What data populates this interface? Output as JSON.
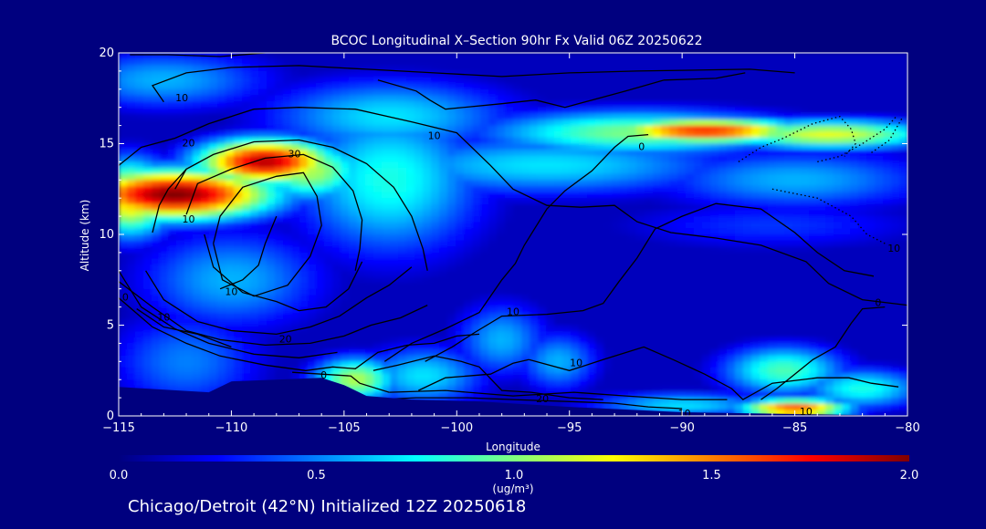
{
  "chart_data": {
    "type": "heatmap",
    "title": "BCOC Longitudinal X–Section 90hr  Fx Valid 06Z 20250622",
    "xlabel": "Longitude",
    "ylabel": "Altitude (km)",
    "xlim": [
      -115,
      -80
    ],
    "ylim": [
      0,
      20
    ],
    "x_ticks": [
      -115,
      -110,
      -105,
      -100,
      -95,
      -90,
      -85,
      -80
    ],
    "x_tick_labels": [
      "−115",
      "−110",
      "−105",
      "−100",
      "−95",
      "−90",
      "−85",
      "−80"
    ],
    "y_ticks": [
      0,
      5,
      10,
      15,
      20
    ],
    "y_tick_labels": [
      "0",
      "5",
      "10",
      "15",
      "20"
    ],
    "colorbar": {
      "min": 0.0,
      "max": 2.0,
      "ticks": [
        0.0,
        0.5,
        1.0,
        1.5,
        2.0
      ],
      "tick_labels": [
        "0.0",
        "0.5",
        "1.0",
        "1.5",
        "2.0"
      ],
      "units": "(ug/m³)",
      "colormap": [
        "#00007f",
        "#0000ff",
        "#007fff",
        "#00ffff",
        "#7fff7f",
        "#ffff00",
        "#ff7f00",
        "#ff0000",
        "#7f0000"
      ]
    },
    "concentration_blobs": [
      {
        "lon": -112.5,
        "alt": 12.2,
        "value": 2.0,
        "sx": 3.2,
        "sy": 1.0
      },
      {
        "lon": -108.5,
        "alt": 14.0,
        "value": 1.9,
        "sx": 2.2,
        "sy": 0.9
      },
      {
        "lon": -114.5,
        "alt": 12.0,
        "value": 1.4,
        "sx": 1.4,
        "sy": 1.5
      },
      {
        "lon": -106.5,
        "alt": 13.5,
        "value": 1.1,
        "sx": 1.8,
        "sy": 1.2
      },
      {
        "lon": -103.0,
        "alt": 13.0,
        "value": 0.8,
        "sx": 3.0,
        "sy": 3.0
      },
      {
        "lon": -103.0,
        "alt": 16.5,
        "value": 0.7,
        "sx": 4.0,
        "sy": 1.5
      },
      {
        "lon": -89.0,
        "alt": 15.7,
        "value": 1.7,
        "sx": 3.2,
        "sy": 0.5
      },
      {
        "lon": -83.5,
        "alt": 15.5,
        "value": 1.2,
        "sx": 3.5,
        "sy": 0.6
      },
      {
        "lon": -92.0,
        "alt": 15.6,
        "value": 1.0,
        "sx": 5.0,
        "sy": 0.9
      },
      {
        "lon": -96.0,
        "alt": 13.8,
        "value": 0.7,
        "sx": 6.0,
        "sy": 1.2
      },
      {
        "lon": -85.0,
        "alt": 13.0,
        "value": 0.6,
        "sx": 4.5,
        "sy": 1.2
      },
      {
        "lon": -113.0,
        "alt": 18.5,
        "value": 0.6,
        "sx": 3.5,
        "sy": 1.2
      },
      {
        "lon": -110.0,
        "alt": 7.5,
        "value": 0.6,
        "sx": 3.0,
        "sy": 2.0
      },
      {
        "lon": -104.5,
        "alt": 2.0,
        "value": 1.1,
        "sx": 1.4,
        "sy": 0.9
      },
      {
        "lon": -101.5,
        "alt": 2.2,
        "value": 0.7,
        "sx": 2.0,
        "sy": 1.2
      },
      {
        "lon": -98.0,
        "alt": 4.2,
        "value": 0.6,
        "sx": 1.5,
        "sy": 1.5
      },
      {
        "lon": -95.5,
        "alt": 3.0,
        "value": 0.6,
        "sx": 1.3,
        "sy": 1.2
      },
      {
        "lon": -85.5,
        "alt": 2.5,
        "value": 0.9,
        "sx": 2.0,
        "sy": 1.0
      },
      {
        "lon": -82.0,
        "alt": 1.5,
        "value": 0.8,
        "sx": 2.0,
        "sy": 0.8
      },
      {
        "lon": -85.0,
        "alt": 0.4,
        "value": 1.6,
        "sx": 1.8,
        "sy": 0.4
      },
      {
        "lon": -90.0,
        "alt": 0.6,
        "value": 0.7,
        "sx": 3.0,
        "sy": 0.5
      },
      {
        "lon": -112.0,
        "alt": 3.0,
        "value": 0.5,
        "sx": 2.5,
        "sy": 2.0
      },
      {
        "lon": -86.0,
        "alt": 10.5,
        "value": 0.35,
        "sx": 5.0,
        "sy": 1.0
      }
    ],
    "terrain": [
      [
        -115,
        1.6
      ],
      [
        -111,
        1.3
      ],
      [
        -110,
        1.9
      ],
      [
        -108,
        2.0
      ],
      [
        -106,
        2.1
      ],
      [
        -105,
        1.7
      ],
      [
        -104,
        1.1
      ],
      [
        -102,
        0.9
      ],
      [
        -99,
        0.8
      ],
      [
        -95,
        0.5
      ],
      [
        -90,
        0.2
      ],
      [
        -85,
        0.1
      ],
      [
        -80,
        0.0
      ]
    ],
    "contour_labels": [
      {
        "text": "10",
        "lon": -112.2,
        "alt": 17.5
      },
      {
        "text": "20",
        "lon": -111.9,
        "alt": 15.0
      },
      {
        "text": "30",
        "lon": -107.2,
        "alt": 14.4
      },
      {
        "text": "10",
        "lon": -101.0,
        "alt": 15.4
      },
      {
        "text": "0",
        "lon": -91.8,
        "alt": 14.8
      },
      {
        "text": "10",
        "lon": -111.9,
        "alt": 10.8
      },
      {
        "text": "0",
        "lon": -114.7,
        "alt": 6.5
      },
      {
        "text": "10",
        "lon": -110.0,
        "alt": 6.8
      },
      {
        "text": "10",
        "lon": -113.0,
        "alt": 5.4
      },
      {
        "text": "20",
        "lon": -107.6,
        "alt": 4.2
      },
      {
        "text": "0",
        "lon": -105.9,
        "alt": 2.2
      },
      {
        "text": "10",
        "lon": -97.5,
        "alt": 5.7
      },
      {
        "text": "10",
        "lon": -94.7,
        "alt": 2.9
      },
      {
        "text": "20",
        "lon": -96.2,
        "alt": 0.9
      },
      {
        "text": "10",
        "lon": -89.9,
        "alt": 0.1
      },
      {
        "text": "10",
        "lon": -84.5,
        "alt": 0.2
      },
      {
        "text": "0",
        "lon": -81.3,
        "alt": 6.2
      },
      {
        "text": "10",
        "lon": -80.6,
        "alt": 9.2
      }
    ],
    "contour_lines": [
      [
        [
          -113,
          17.3
        ],
        [
          -113.5,
          18.2
        ],
        [
          -112,
          18.9
        ],
        [
          -110,
          19.2
        ],
        [
          -107,
          19.3
        ],
        [
          -104,
          19.1
        ],
        [
          -101,
          18.9
        ],
        [
          -98,
          18.7
        ],
        [
          -95,
          18.9
        ],
        [
          -92,
          19.0
        ],
        [
          -87,
          19.1
        ],
        [
          -85,
          18.9
        ]
      ],
      [
        [
          -115,
          13.8
        ],
        [
          -114,
          14.8
        ],
        [
          -112.5,
          15.3
        ],
        [
          -111,
          16.1
        ],
        [
          -109,
          16.9
        ],
        [
          -107,
          17.0
        ],
        [
          -104.5,
          16.9
        ],
        [
          -102,
          16.2
        ],
        [
          -100,
          15.6
        ],
        [
          -98.5,
          13.8
        ],
        [
          -97.5,
          12.5
        ],
        [
          -96,
          11.6
        ],
        [
          -94.5,
          11.5
        ],
        [
          -93,
          11.6
        ],
        [
          -92,
          10.7
        ],
        [
          -90.5,
          10.1
        ],
        [
          -88.5,
          9.8
        ],
        [
          -86.5,
          9.4
        ],
        [
          -84.5,
          8.5
        ],
        [
          -83.5,
          7.3
        ],
        [
          -82,
          6.4
        ],
        [
          -80,
          6.1
        ]
      ],
      [
        [
          -112.5,
          12.5
        ],
        [
          -112,
          13.6
        ],
        [
          -110.8,
          14.4
        ],
        [
          -109,
          15.1
        ],
        [
          -107,
          15.2
        ],
        [
          -105.5,
          14.8
        ],
        [
          -104,
          13.9
        ],
        [
          -102.8,
          12.6
        ],
        [
          -102,
          11.0
        ],
        [
          -101.5,
          9.2
        ],
        [
          -101.3,
          8.0
        ]
      ],
      [
        [
          -112,
          11.1
        ],
        [
          -111.5,
          12.8
        ],
        [
          -110,
          13.6
        ],
        [
          -108.5,
          14.2
        ],
        [
          -106.8,
          14.4
        ],
        [
          -105.5,
          13.7
        ],
        [
          -104.6,
          12.4
        ],
        [
          -104.2,
          10.8
        ],
        [
          -104.3,
          9.2
        ],
        [
          -104.5,
          8.0
        ]
      ],
      [
        [
          -113.5,
          10.1
        ],
        [
          -113.2,
          11.6
        ],
        [
          -112.8,
          12.5
        ],
        [
          -112,
          13.6
        ]
      ],
      [
        [
          -110.8,
          9.5
        ],
        [
          -110.5,
          11.0
        ],
        [
          -109.5,
          12.6
        ],
        [
          -108,
          13.2
        ],
        [
          -106.8,
          13.4
        ],
        [
          -106.2,
          12.1
        ],
        [
          -106.0,
          10.5
        ],
        [
          -106.5,
          8.8
        ],
        [
          -107.5,
          7.2
        ],
        [
          -109,
          6.6
        ],
        [
          -110.4,
          7.5
        ],
        [
          -110.8,
          9.5
        ]
      ],
      [
        [
          -111.2,
          10.0
        ],
        [
          -110.8,
          8.2
        ],
        [
          -109.5,
          6.8
        ],
        [
          -108,
          6.3
        ],
        [
          -107,
          5.8
        ],
        [
          -105.8,
          6.0
        ],
        [
          -104.8,
          7.0
        ],
        [
          -104.2,
          8.5
        ]
      ],
      [
        [
          -113.8,
          8.0
        ],
        [
          -113,
          6.4
        ],
        [
          -111.5,
          5.2
        ],
        [
          -110,
          4.7
        ],
        [
          -108,
          4.5
        ],
        [
          -106.5,
          4.9
        ],
        [
          -105.2,
          5.5
        ],
        [
          -104,
          6.5
        ],
        [
          -103,
          7.2
        ],
        [
          -102,
          8.2
        ]
      ],
      [
        [
          -115,
          7.4
        ],
        [
          -113.5,
          6.0
        ],
        [
          -112,
          4.7
        ],
        [
          -110.5,
          4.2
        ],
        [
          -108.5,
          3.9
        ],
        [
          -106.5,
          4.0
        ],
        [
          -105,
          4.4
        ],
        [
          -103.8,
          5.0
        ],
        [
          -102.5,
          5.4
        ],
        [
          -101.3,
          6.1
        ]
      ],
      [
        [
          -115,
          8.0
        ],
        [
          -114,
          6.0
        ],
        [
          -112.5,
          4.8
        ],
        [
          -111,
          4.0
        ],
        [
          -109,
          3.4
        ],
        [
          -107,
          3.2
        ],
        [
          -105.3,
          3.5
        ]
      ],
      [
        [
          -114.2,
          5.9
        ],
        [
          -113,
          4.9
        ],
        [
          -111.5,
          4.5
        ],
        [
          -110,
          3.8
        ]
      ],
      [
        [
          -115,
          6.5
        ],
        [
          -113.5,
          4.9
        ],
        [
          -112,
          4.0
        ],
        [
          -110.5,
          3.3
        ],
        [
          -108.5,
          2.8
        ],
        [
          -106.7,
          2.5
        ],
        [
          -105.5,
          2.7
        ],
        [
          -104.5,
          2.6
        ],
        [
          -103.5,
          3.5
        ],
        [
          -102.2,
          3.9
        ],
        [
          -101.0,
          4.0
        ],
        [
          -100.0,
          4.4
        ],
        [
          -99.0,
          4.5
        ]
      ],
      [
        [
          -103.7,
          2.5
        ],
        [
          -102.6,
          2.8
        ],
        [
          -101.0,
          3.3
        ],
        [
          -99.8,
          3.0
        ],
        [
          -99.0,
          2.7
        ],
        [
          -98.0,
          1.4
        ],
        [
          -96.7,
          1.3
        ],
        [
          -95.0,
          1.0
        ],
        [
          -93.5,
          0.9
        ]
      ],
      [
        [
          -103.5,
          0.9
        ],
        [
          -101.8,
          1.0
        ],
        [
          -99.5,
          1.0
        ],
        [
          -97.5,
          0.9
        ],
        [
          -95.2,
          0.8
        ],
        [
          -93.0,
          0.7
        ],
        [
          -91.5,
          0.5
        ],
        [
          -90.0,
          0.4
        ]
      ],
      [
        [
          -103.0,
          1.3
        ],
        [
          -100.5,
          1.4
        ],
        [
          -97.5,
          1.1
        ],
        [
          -94.8,
          1.3
        ],
        [
          -92.5,
          1.1
        ],
        [
          -90.0,
          0.9
        ],
        [
          -88.0,
          0.9
        ]
      ],
      [
        [
          -107.3,
          2.4
        ],
        [
          -106.0,
          2.3
        ],
        [
          -104.7,
          2.2
        ],
        [
          -104.3,
          1.8
        ],
        [
          -103.0,
          1.3
        ]
      ],
      [
        [
          -108.0,
          11.0
        ],
        [
          -108.5,
          9.5
        ],
        [
          -108.8,
          8.3
        ],
        [
          -109.5,
          7.5
        ],
        [
          -110.5,
          7.0
        ]
      ],
      [
        [
          -114.5,
          19.9
        ],
        [
          -112.8,
          19.9
        ],
        [
          -110.5,
          19.8
        ],
        [
          -108.5,
          20.0
        ]
      ],
      [
        [
          -103.5,
          18.5
        ],
        [
          -101.8,
          17.9
        ],
        [
          -101.2,
          17.4
        ],
        [
          -100.5,
          16.9
        ],
        [
          -98.0,
          17.2
        ],
        [
          -96.5,
          17.4
        ],
        [
          -95.2,
          17.0
        ],
        [
          -94.0,
          17.4
        ],
        [
          -92.5,
          17.9
        ],
        [
          -90.8,
          18.5
        ],
        [
          -88.5,
          18.6
        ],
        [
          -87.2,
          18.9
        ]
      ],
      [
        [
          -103.2,
          3.0
        ],
        [
          -102.0,
          4.0
        ],
        [
          -100.5,
          4.8
        ],
        [
          -99.0,
          5.7
        ],
        [
          -98.0,
          7.5
        ],
        [
          -97.4,
          8.4
        ],
        [
          -97.0,
          9.4
        ],
        [
          -96.0,
          11.4
        ],
        [
          -95.2,
          12.4
        ],
        [
          -94.0,
          13.5
        ],
        [
          -93.0,
          14.8
        ],
        [
          -92.4,
          15.4
        ],
        [
          -91.5,
          15.5
        ]
      ],
      [
        [
          -101.4,
          3.0
        ],
        [
          -100.2,
          3.8
        ],
        [
          -99.2,
          4.6
        ],
        [
          -98.0,
          5.5
        ],
        [
          -96.0,
          5.6
        ],
        [
          -94.4,
          5.8
        ],
        [
          -93.5,
          6.2
        ],
        [
          -92.8,
          7.4
        ],
        [
          -92.0,
          8.7
        ],
        [
          -91.2,
          10.3
        ],
        [
          -90.0,
          11.0
        ],
        [
          -88.5,
          11.7
        ],
        [
          -86.5,
          11.4
        ],
        [
          -85.0,
          10.1
        ],
        [
          -84.0,
          9.0
        ],
        [
          -82.8,
          8.0
        ],
        [
          -81.5,
          7.7
        ]
      ],
      [
        [
          -96.8,
          3.1
        ],
        [
          -95.0,
          2.5
        ],
        [
          -93.5,
          3.1
        ],
        [
          -91.7,
          3.8
        ],
        [
          -90.4,
          3.1
        ],
        [
          -89.0,
          2.3
        ],
        [
          -87.8,
          1.5
        ],
        [
          -87.3,
          0.9
        ],
        [
          -86.0,
          1.8
        ],
        [
          -84.0,
          2.1
        ],
        [
          -82.6,
          2.1
        ],
        [
          -81.6,
          1.8
        ],
        [
          -80.4,
          1.6
        ]
      ],
      [
        [
          -101.7,
          1.4
        ],
        [
          -100.5,
          2.1
        ],
        [
          -98.5,
          2.3
        ],
        [
          -97.5,
          2.9
        ],
        [
          -96.8,
          3.1
        ]
      ],
      [
        [
          -86.5,
          0.9
        ],
        [
          -85.8,
          1.5
        ],
        [
          -85.0,
          2.3
        ],
        [
          -84.2,
          3.1
        ],
        [
          -83.2,
          3.8
        ],
        [
          -82.5,
          5.1
        ],
        [
          -82.0,
          5.9
        ],
        [
          -81.0,
          6.0
        ]
      ]
    ],
    "dotted_contours": [
      [
        [
          -87.5,
          14.0
        ],
        [
          -86.5,
          14.8
        ],
        [
          -85.5,
          15.3
        ],
        [
          -84.2,
          16.1
        ],
        [
          -83.0,
          16.5
        ],
        [
          -82.5,
          15.8
        ],
        [
          -82.3,
          15.0
        ],
        [
          -82.8,
          14.3
        ]
      ],
      [
        [
          -84.0,
          14.0
        ],
        [
          -83.0,
          14.3
        ],
        [
          -82.0,
          15.0
        ],
        [
          -81.0,
          15.8
        ],
        [
          -80.5,
          16.5
        ]
      ],
      [
        [
          -86.0,
          12.5
        ],
        [
          -84.0,
          12.0
        ],
        [
          -82.5,
          11.0
        ],
        [
          -81.8,
          10.0
        ],
        [
          -81.0,
          9.5
        ]
      ],
      [
        [
          -81.6,
          14.5
        ],
        [
          -80.8,
          15.2
        ],
        [
          -80.2,
          16.5
        ]
      ]
    ],
    "footer": "Chicago/Detroit (42°N) Initialized 12Z 20250618"
  }
}
